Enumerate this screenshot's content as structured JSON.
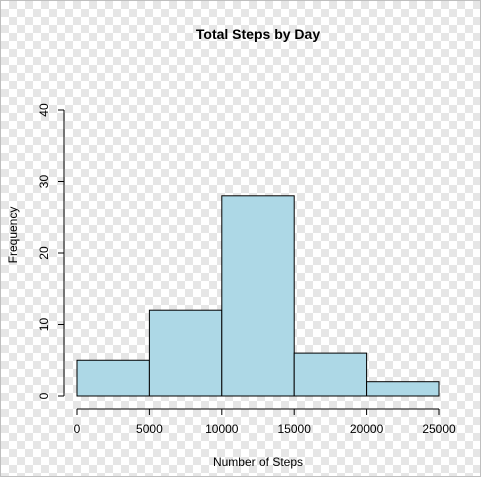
{
  "chart_data": {
    "type": "bar",
    "title": "Total Steps by Day",
    "xlabel": "Number of Steps",
    "ylabel": "Frequency",
    "bins": [
      [
        0,
        5000
      ],
      [
        5000,
        10000
      ],
      [
        10000,
        15000
      ],
      [
        15000,
        20000
      ],
      [
        20000,
        25000
      ]
    ],
    "values": [
      5,
      12,
      28,
      6,
      2
    ],
    "xlim": [
      0,
      25000
    ],
    "ylim": [
      0,
      40
    ],
    "x_ticks": [
      0,
      5000,
      10000,
      15000,
      20000,
      25000
    ],
    "y_ticks": [
      0,
      10,
      20,
      30,
      40
    ],
    "bar_color": "#add8e6",
    "grid": false
  }
}
